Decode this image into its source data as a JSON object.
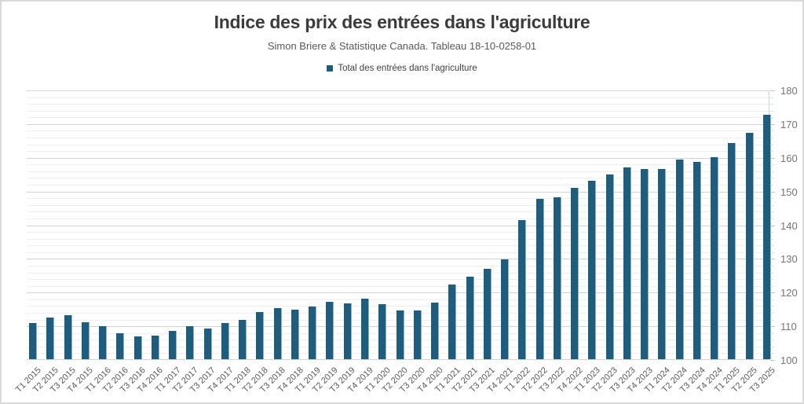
{
  "header": {
    "title": "Indice des prix des entrées dans l'agriculture",
    "subtitle": "Simon Briere & Statistique Canada. Tableau 18-10-0258-01"
  },
  "legend": {
    "label": "Total des entrées dans l'agriculture",
    "marker_color": "#1F5D7E"
  },
  "colors": {
    "bar": "#1F5D7E",
    "major_gridline": "#d2d2d2",
    "minor_gridline": "#efefef",
    "axis_text": "#757575",
    "category_text": "#595959"
  },
  "chart_data": {
    "type": "bar",
    "title": "Indice des prix des entrées dans l'agriculture",
    "subtitle": "Simon Briere & Statistique Canada. Tableau 18-10-0258-01",
    "legend_entries": [
      "Total des entrées dans l'agriculture"
    ],
    "legend_position": "top",
    "grid": true,
    "y_axis_side": "right",
    "ylim": [
      100,
      180
    ],
    "y_major_step": 10,
    "y_minor_step": 2,
    "ylabel": "",
    "xlabel": "",
    "categories": [
      "T1 2015",
      "T2 2015",
      "T3 2015",
      "T4 2015",
      "T1 2016",
      "T2 2016",
      "T3 2016",
      "T4 2016",
      "T1 2017",
      "T2 2017",
      "T3 2017",
      "T4 2017",
      "T1 2018",
      "T2 2018",
      "T3 2018",
      "T4 2018",
      "T1 2019",
      "T2 2019",
      "T3 2019",
      "T4 2019",
      "T1 2020",
      "T2 2020",
      "T3 2020",
      "T4 2020",
      "T1 2021",
      "T2 2021",
      "T3 2021",
      "T4 2021",
      "T1 2022",
      "T2 2022",
      "T3 2022",
      "T4 2022",
      "T1 2023",
      "T2 2023",
      "T3 2023",
      "T4 2023",
      "T1 2024",
      "T2 2024",
      "T3 2024",
      "T4 2024",
      "T1 2025",
      "T2 2025",
      "T3 2025"
    ],
    "values": [
      111.0,
      112.7,
      113.4,
      111.3,
      110.0,
      108.0,
      107.0,
      107.2,
      108.6,
      110.0,
      109.3,
      110.9,
      112.0,
      114.2,
      115.4,
      115.0,
      115.8,
      117.3,
      116.9,
      118.1,
      116.6,
      114.6,
      114.6,
      117.0,
      122.3,
      124.7,
      127.0,
      129.8,
      141.6,
      147.9,
      148.4,
      151.0,
      153.2,
      155.0,
      157.1,
      156.7,
      156.6,
      159.4,
      158.8,
      160.1,
      164.4,
      167.4,
      172.7
    ]
  }
}
